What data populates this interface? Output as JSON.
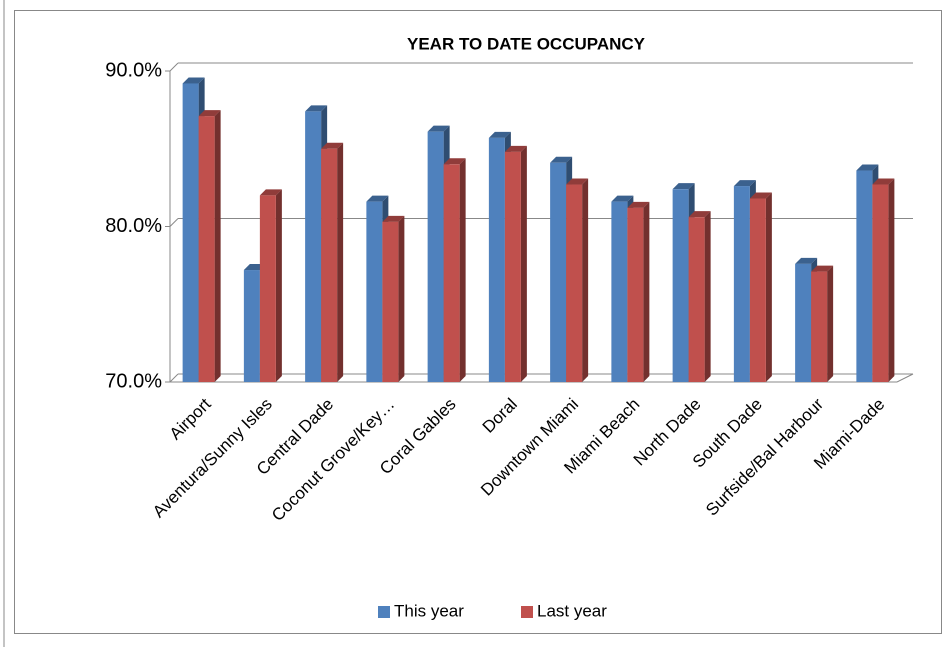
{
  "chart_data": {
    "type": "bar",
    "title": "YEAR TO DATE OCCUPANCY",
    "categories": [
      "Airport",
      "Aventura/Sunny Isles",
      "Central Dade",
      "Coconut Grove/Key…",
      "Coral Gables",
      "Doral",
      "Downtown Miami",
      "Miami Beach",
      "North Dade",
      "South Dade",
      "Surfside/Bal Harbour",
      "Miami-Dade"
    ],
    "series": [
      {
        "name": "This year",
        "color": "#4f81bd",
        "values": [
          89.2,
          77.2,
          87.4,
          81.6,
          86.1,
          85.7,
          84.1,
          81.6,
          82.4,
          82.6,
          77.6,
          83.6
        ]
      },
      {
        "name": "Last year",
        "color": "#c0504d",
        "values": [
          87.1,
          82.0,
          85.0,
          80.3,
          84.0,
          84.8,
          82.7,
          81.2,
          80.6,
          81.8,
          77.1,
          82.7
        ]
      }
    ],
    "ylim": [
      70,
      90
    ],
    "yticks": [
      {
        "value": 70,
        "label": "70.0%"
      },
      {
        "value": 80,
        "label": "80.0%"
      },
      {
        "value": 90,
        "label": "90.0%"
      }
    ],
    "grid": true,
    "legend": "bottom"
  }
}
